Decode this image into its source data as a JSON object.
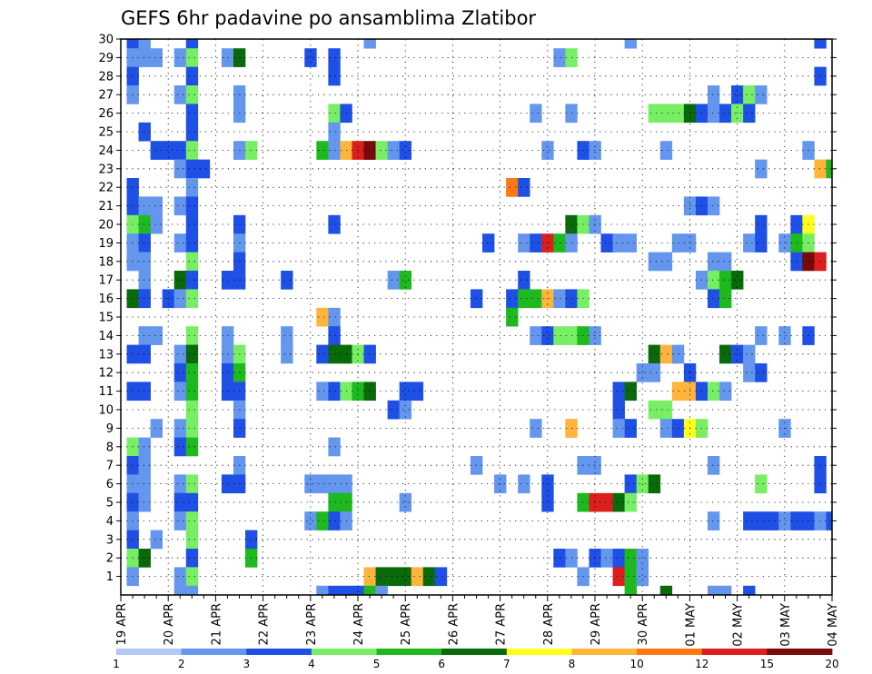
{
  "chart_data": {
    "type": "heatmap",
    "title": "GEFS 6hr padavine po ansamblima Zlatibor",
    "xlabel": "",
    "ylabel": "",
    "x_tick_labels": [
      "19 APR",
      "20 APR",
      "21 APR",
      "22 APR",
      "23 APR",
      "24 APR",
      "25 APR",
      "26 APR",
      "27 APR",
      "28 APR",
      "29 APR",
      "30 APR",
      "01 MAY",
      "02 MAY",
      "03 MAY",
      "04 MAY"
    ],
    "y_tick_labels": [
      "1",
      "2",
      "3",
      "4",
      "5",
      "6",
      "7",
      "8",
      "9",
      "10",
      "11",
      "12",
      "13",
      "14",
      "15",
      "16",
      "17",
      "18",
      "19",
      "20",
      "21",
      "22",
      "23",
      "24",
      "25",
      "26",
      "27",
      "28",
      "29",
      "30"
    ],
    "xlim": [
      0,
      60
    ],
    "ylim": [
      0,
      30
    ],
    "grid": true,
    "colorbar": {
      "position": "bottom",
      "bounds": [
        1,
        2,
        3,
        4,
        5,
        6,
        7,
        8,
        10,
        12,
        15,
        20
      ],
      "labels": [
        "1",
        "2",
        "3",
        "4",
        "5",
        "6",
        "7",
        "8",
        "10",
        "12",
        "15",
        "20"
      ],
      "colors": [
        "#b4c8f5",
        "#6496ee",
        "#1e50e6",
        "#78ee64",
        "#1eb91e",
        "#0a690a",
        "#ffff1e",
        "#ffb43c",
        "#ff7814",
        "#dc1e1e",
        "#780a0a"
      ]
    },
    "cells_format": "[x_step, member, class] — x_step in 6-hour steps from 19 APR 00Z, member 1-30, class = colorbar interval index (0 = 1-2 ... 10 = >20)",
    "cells": [
      [
        1,
        30,
        2
      ],
      [
        2,
        30,
        1
      ],
      [
        6,
        30,
        2
      ],
      [
        21,
        30,
        1
      ],
      [
        43,
        30,
        1
      ],
      [
        59,
        30,
        2
      ],
      [
        1,
        29,
        1
      ],
      [
        2,
        29,
        1
      ],
      [
        3,
        29,
        1
      ],
      [
        5,
        29,
        1
      ],
      [
        6,
        29,
        3
      ],
      [
        9,
        29,
        1
      ],
      [
        10,
        29,
        5
      ],
      [
        16,
        29,
        2
      ],
      [
        18,
        29,
        2
      ],
      [
        37,
        29,
        1
      ],
      [
        38,
        29,
        3
      ],
      [
        1,
        28,
        2
      ],
      [
        6,
        28,
        2
      ],
      [
        18,
        28,
        2
      ],
      [
        59,
        28,
        2
      ],
      [
        1,
        27,
        1
      ],
      [
        5,
        27,
        1
      ],
      [
        6,
        27,
        3
      ],
      [
        10,
        27,
        1
      ],
      [
        50,
        27,
        1
      ],
      [
        52,
        27,
        2
      ],
      [
        53,
        27,
        3
      ],
      [
        54,
        27,
        1
      ],
      [
        6,
        26,
        2
      ],
      [
        10,
        26,
        1
      ],
      [
        18,
        26,
        3
      ],
      [
        19,
        26,
        2
      ],
      [
        35,
        26,
        1
      ],
      [
        38,
        26,
        1
      ],
      [
        45,
        26,
        3
      ],
      [
        46,
        26,
        3
      ],
      [
        47,
        26,
        3
      ],
      [
        48,
        26,
        5
      ],
      [
        49,
        26,
        2
      ],
      [
        50,
        26,
        1
      ],
      [
        51,
        26,
        2
      ],
      [
        52,
        26,
        3
      ],
      [
        53,
        26,
        2
      ],
      [
        2,
        25,
        2
      ],
      [
        6,
        25,
        2
      ],
      [
        18,
        25,
        1
      ],
      [
        3,
        24,
        2
      ],
      [
        4,
        24,
        2
      ],
      [
        5,
        24,
        2
      ],
      [
        6,
        24,
        3
      ],
      [
        10,
        24,
        1
      ],
      [
        11,
        24,
        3
      ],
      [
        17,
        24,
        4
      ],
      [
        18,
        24,
        1
      ],
      [
        19,
        24,
        7
      ],
      [
        20,
        24,
        9
      ],
      [
        21,
        24,
        10
      ],
      [
        22,
        24,
        3
      ],
      [
        23,
        24,
        1
      ],
      [
        24,
        24,
        2
      ],
      [
        36,
        24,
        1
      ],
      [
        39,
        24,
        2
      ],
      [
        40,
        24,
        1
      ],
      [
        46,
        24,
        1
      ],
      [
        58,
        24,
        1
      ],
      [
        5,
        23,
        1
      ],
      [
        6,
        23,
        2
      ],
      [
        7,
        23,
        2
      ],
      [
        54,
        23,
        1
      ],
      [
        59,
        23,
        7
      ],
      [
        60,
        23,
        4
      ],
      [
        1,
        22,
        2
      ],
      [
        6,
        22,
        1
      ],
      [
        33,
        22,
        8
      ],
      [
        34,
        22,
        2
      ],
      [
        1,
        21,
        2
      ],
      [
        2,
        21,
        1
      ],
      [
        3,
        21,
        1
      ],
      [
        5,
        21,
        1
      ],
      [
        6,
        21,
        2
      ],
      [
        48,
        21,
        1
      ],
      [
        49,
        21,
        2
      ],
      [
        50,
        21,
        1
      ],
      [
        1,
        20,
        3
      ],
      [
        2,
        20,
        4
      ],
      [
        3,
        20,
        1
      ],
      [
        6,
        20,
        2
      ],
      [
        10,
        20,
        2
      ],
      [
        18,
        20,
        2
      ],
      [
        38,
        20,
        5
      ],
      [
        39,
        20,
        3
      ],
      [
        40,
        20,
        1
      ],
      [
        54,
        20,
        2
      ],
      [
        57,
        20,
        2
      ],
      [
        58,
        20,
        6
      ],
      [
        1,
        19,
        1
      ],
      [
        2,
        19,
        2
      ],
      [
        5,
        19,
        1
      ],
      [
        6,
        19,
        2
      ],
      [
        10,
        19,
        1
      ],
      [
        31,
        19,
        2
      ],
      [
        34,
        19,
        1
      ],
      [
        35,
        19,
        2
      ],
      [
        36,
        19,
        9
      ],
      [
        37,
        19,
        4
      ],
      [
        38,
        19,
        1
      ],
      [
        41,
        19,
        2
      ],
      [
        42,
        19,
        1
      ],
      [
        43,
        19,
        1
      ],
      [
        47,
        19,
        1
      ],
      [
        48,
        19,
        1
      ],
      [
        53,
        19,
        1
      ],
      [
        54,
        19,
        2
      ],
      [
        56,
        19,
        1
      ],
      [
        57,
        19,
        4
      ],
      [
        58,
        19,
        3
      ],
      [
        1,
        18,
        1
      ],
      [
        2,
        18,
        1
      ],
      [
        6,
        18,
        3
      ],
      [
        10,
        18,
        2
      ],
      [
        45,
        18,
        1
      ],
      [
        46,
        18,
        1
      ],
      [
        50,
        18,
        1
      ],
      [
        51,
        18,
        1
      ],
      [
        57,
        18,
        2
      ],
      [
        58,
        18,
        10
      ],
      [
        59,
        18,
        9
      ],
      [
        2,
        17,
        1
      ],
      [
        5,
        17,
        5
      ],
      [
        6,
        17,
        2
      ],
      [
        9,
        17,
        2
      ],
      [
        10,
        17,
        2
      ],
      [
        14,
        17,
        2
      ],
      [
        23,
        17,
        1
      ],
      [
        24,
        17,
        4
      ],
      [
        34,
        17,
        2
      ],
      [
        49,
        17,
        1
      ],
      [
        50,
        17,
        3
      ],
      [
        51,
        17,
        4
      ],
      [
        52,
        17,
        5
      ],
      [
        1,
        16,
        5
      ],
      [
        2,
        16,
        2
      ],
      [
        4,
        16,
        2
      ],
      [
        5,
        16,
        1
      ],
      [
        6,
        16,
        3
      ],
      [
        30,
        16,
        2
      ],
      [
        33,
        16,
        2
      ],
      [
        34,
        16,
        4
      ],
      [
        35,
        16,
        4
      ],
      [
        36,
        16,
        7
      ],
      [
        37,
        16,
        1
      ],
      [
        38,
        16,
        2
      ],
      [
        39,
        16,
        3
      ],
      [
        50,
        16,
        2
      ],
      [
        51,
        16,
        4
      ],
      [
        17,
        15,
        7
      ],
      [
        18,
        15,
        1
      ],
      [
        33,
        15,
        4
      ],
      [
        2,
        14,
        1
      ],
      [
        3,
        14,
        1
      ],
      [
        6,
        14,
        3
      ],
      [
        9,
        14,
        1
      ],
      [
        14,
        14,
        1
      ],
      [
        18,
        14,
        2
      ],
      [
        35,
        14,
        1
      ],
      [
        36,
        14,
        2
      ],
      [
        37,
        14,
        3
      ],
      [
        38,
        14,
        3
      ],
      [
        39,
        14,
        4
      ],
      [
        40,
        14,
        1
      ],
      [
        54,
        14,
        1
      ],
      [
        56,
        14,
        1
      ],
      [
        58,
        14,
        2
      ],
      [
        1,
        13,
        2
      ],
      [
        2,
        13,
        2
      ],
      [
        5,
        13,
        1
      ],
      [
        6,
        13,
        5
      ],
      [
        9,
        13,
        1
      ],
      [
        10,
        13,
        3
      ],
      [
        14,
        13,
        1
      ],
      [
        17,
        13,
        2
      ],
      [
        18,
        13,
        5
      ],
      [
        19,
        13,
        5
      ],
      [
        20,
        13,
        3
      ],
      [
        21,
        13,
        2
      ],
      [
        45,
        13,
        5
      ],
      [
        46,
        13,
        7
      ],
      [
        47,
        13,
        1
      ],
      [
        51,
        13,
        5
      ],
      [
        52,
        13,
        2
      ],
      [
        53,
        13,
        1
      ],
      [
        5,
        12,
        2
      ],
      [
        6,
        12,
        4
      ],
      [
        9,
        12,
        2
      ],
      [
        10,
        12,
        4
      ],
      [
        44,
        12,
        1
      ],
      [
        45,
        12,
        1
      ],
      [
        48,
        12,
        2
      ],
      [
        53,
        12,
        1
      ],
      [
        54,
        12,
        2
      ],
      [
        1,
        11,
        2
      ],
      [
        2,
        11,
        2
      ],
      [
        5,
        11,
        1
      ],
      [
        6,
        11,
        4
      ],
      [
        9,
        11,
        2
      ],
      [
        10,
        11,
        2
      ],
      [
        17,
        11,
        1
      ],
      [
        18,
        11,
        2
      ],
      [
        19,
        11,
        3
      ],
      [
        20,
        11,
        4
      ],
      [
        21,
        11,
        5
      ],
      [
        24,
        11,
        2
      ],
      [
        25,
        11,
        2
      ],
      [
        42,
        11,
        2
      ],
      [
        43,
        11,
        5
      ],
      [
        47,
        11,
        7
      ],
      [
        48,
        11,
        7
      ],
      [
        49,
        11,
        2
      ],
      [
        50,
        11,
        3
      ],
      [
        51,
        11,
        1
      ],
      [
        6,
        10,
        3
      ],
      [
        10,
        10,
        1
      ],
      [
        23,
        10,
        2
      ],
      [
        24,
        10,
        1
      ],
      [
        42,
        10,
        2
      ],
      [
        45,
        10,
        3
      ],
      [
        46,
        10,
        3
      ],
      [
        3,
        9,
        1
      ],
      [
        5,
        9,
        1
      ],
      [
        6,
        9,
        3
      ],
      [
        10,
        9,
        2
      ],
      [
        35,
        9,
        1
      ],
      [
        38,
        9,
        7
      ],
      [
        42,
        9,
        1
      ],
      [
        43,
        9,
        2
      ],
      [
        46,
        9,
        1
      ],
      [
        47,
        9,
        2
      ],
      [
        48,
        9,
        6
      ],
      [
        49,
        9,
        3
      ],
      [
        56,
        9,
        1
      ],
      [
        1,
        8,
        3
      ],
      [
        2,
        8,
        1
      ],
      [
        5,
        8,
        2
      ],
      [
        6,
        8,
        4
      ],
      [
        18,
        8,
        1
      ],
      [
        1,
        7,
        2
      ],
      [
        2,
        7,
        1
      ],
      [
        10,
        7,
        1
      ],
      [
        30,
        7,
        1
      ],
      [
        39,
        7,
        1
      ],
      [
        40,
        7,
        1
      ],
      [
        50,
        7,
        1
      ],
      [
        59,
        7,
        2
      ],
      [
        1,
        6,
        1
      ],
      [
        2,
        6,
        1
      ],
      [
        5,
        6,
        1
      ],
      [
        6,
        6,
        3
      ],
      [
        9,
        6,
        2
      ],
      [
        10,
        6,
        2
      ],
      [
        16,
        6,
        1
      ],
      [
        17,
        6,
        1
      ],
      [
        18,
        6,
        1
      ],
      [
        19,
        6,
        1
      ],
      [
        32,
        6,
        1
      ],
      [
        34,
        6,
        1
      ],
      [
        36,
        6,
        2
      ],
      [
        43,
        6,
        2
      ],
      [
        44,
        6,
        3
      ],
      [
        45,
        6,
        5
      ],
      [
        54,
        6,
        3
      ],
      [
        59,
        6,
        2
      ],
      [
        1,
        5,
        2
      ],
      [
        2,
        5,
        1
      ],
      [
        5,
        5,
        2
      ],
      [
        6,
        5,
        2
      ],
      [
        18,
        5,
        4
      ],
      [
        19,
        5,
        4
      ],
      [
        24,
        5,
        1
      ],
      [
        36,
        5,
        2
      ],
      [
        39,
        5,
        4
      ],
      [
        40,
        5,
        9
      ],
      [
        41,
        5,
        9
      ],
      [
        42,
        5,
        5
      ],
      [
        43,
        5,
        3
      ],
      [
        1,
        4,
        1
      ],
      [
        5,
        4,
        1
      ],
      [
        6,
        4,
        3
      ],
      [
        16,
        4,
        1
      ],
      [
        17,
        4,
        4
      ],
      [
        18,
        4,
        2
      ],
      [
        19,
        4,
        1
      ],
      [
        50,
        4,
        1
      ],
      [
        53,
        4,
        2
      ],
      [
        54,
        4,
        2
      ],
      [
        55,
        4,
        2
      ],
      [
        56,
        4,
        1
      ],
      [
        57,
        4,
        2
      ],
      [
        58,
        4,
        2
      ],
      [
        59,
        4,
        1
      ],
      [
        60,
        4,
        2
      ],
      [
        1,
        3,
        2
      ],
      [
        3,
        3,
        1
      ],
      [
        6,
        3,
        3
      ],
      [
        11,
        3,
        2
      ],
      [
        1,
        2,
        3
      ],
      [
        2,
        2,
        5
      ],
      [
        6,
        2,
        2
      ],
      [
        11,
        2,
        4
      ],
      [
        37,
        2,
        2
      ],
      [
        38,
        2,
        1
      ],
      [
        40,
        2,
        2
      ],
      [
        41,
        2,
        1
      ],
      [
        42,
        2,
        2
      ],
      [
        43,
        2,
        4
      ],
      [
        44,
        2,
        1
      ],
      [
        1,
        1,
        1
      ],
      [
        5,
        1,
        1
      ],
      [
        6,
        1,
        3
      ],
      [
        21,
        1,
        7
      ],
      [
        22,
        1,
        5
      ],
      [
        23,
        1,
        5
      ],
      [
        24,
        1,
        5
      ],
      [
        25,
        1,
        7
      ],
      [
        26,
        1,
        5
      ],
      [
        27,
        1,
        2
      ],
      [
        39,
        1,
        1
      ],
      [
        42,
        1,
        9
      ],
      [
        43,
        1,
        4
      ],
      [
        44,
        1,
        1
      ],
      [
        5,
        0,
        1
      ],
      [
        6,
        0,
        1
      ],
      [
        17,
        0,
        1
      ],
      [
        18,
        0,
        2
      ],
      [
        19,
        0,
        2
      ],
      [
        20,
        0,
        2
      ],
      [
        21,
        0,
        4
      ],
      [
        22,
        0,
        1
      ],
      [
        43,
        0,
        4
      ],
      [
        46,
        0,
        5
      ],
      [
        50,
        0,
        1
      ],
      [
        51,
        0,
        1
      ],
      [
        53,
        0,
        2
      ]
    ]
  }
}
